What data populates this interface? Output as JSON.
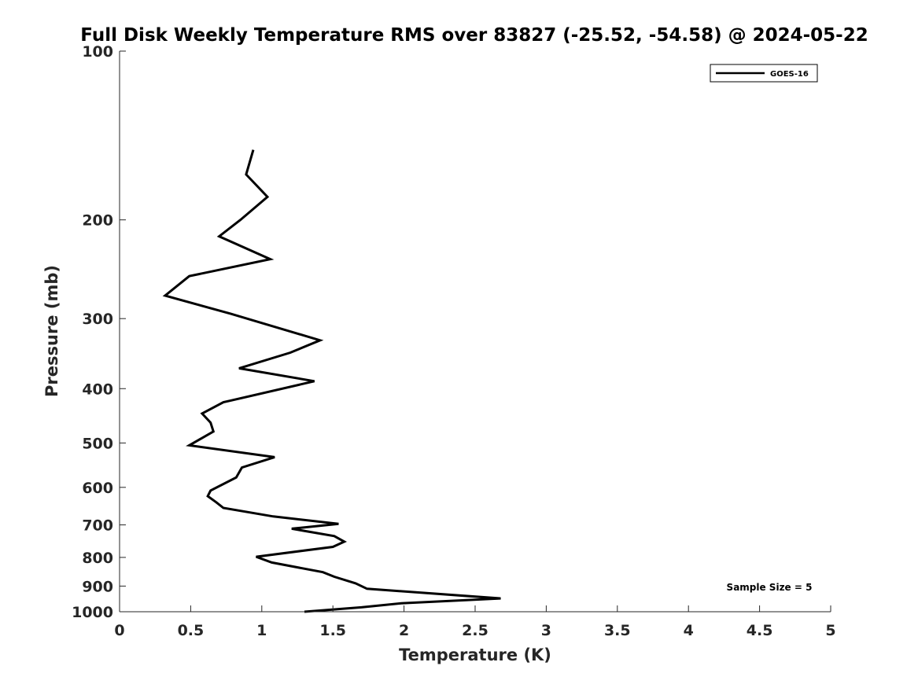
{
  "chart_data": {
    "type": "line",
    "title": "Full Disk Weekly Temperature RMS over 83827 (-25.52, -54.58) @ 2024-05-22",
    "xlabel": "Temperature (K)",
    "ylabel": "Pressure (mb)",
    "xlim": [
      0,
      5
    ],
    "ylim": [
      100,
      1000
    ],
    "y_scale": "log",
    "y_reversed": true,
    "x_ticks": [
      0,
      0.5,
      1,
      1.5,
      2,
      2.5,
      3,
      3.5,
      4,
      4.5,
      5
    ],
    "x_tick_labels": [
      "0",
      "0.5",
      "1",
      "1.5",
      "2",
      "2.5",
      "3",
      "3.5",
      "4",
      "4.5",
      "5"
    ],
    "y_ticks": [
      100,
      200,
      300,
      400,
      500,
      600,
      700,
      800,
      900,
      1000
    ],
    "y_tick_labels": [
      "100",
      "200",
      "300",
      "400",
      "500",
      "600",
      "700",
      "800",
      "900",
      "1000"
    ],
    "grid": false,
    "legend_position": "top-right",
    "series": [
      {
        "name": "GOES-16",
        "color": "#000000",
        "x": [
          0.94,
          0.89,
          1.04,
          0.85,
          0.7,
          1.06,
          0.49,
          0.32,
          0.78,
          1.41,
          1.2,
          0.84,
          1.37,
          0.73,
          0.58,
          0.64,
          0.66,
          0.49,
          1.09,
          0.86,
          0.82,
          0.64,
          0.62,
          0.68,
          0.73,
          1.08,
          1.54,
          1.21,
          1.51,
          1.58,
          1.5,
          0.96,
          1.07,
          1.43,
          1.51,
          1.66,
          1.74,
          2.68,
          1.98,
          1.7,
          1.3
        ],
        "y": [
          150,
          166,
          182,
          200,
          214,
          235,
          252,
          273,
          294,
          328,
          345,
          368,
          388,
          423,
          443,
          460,
          477,
          505,
          530,
          553,
          576,
          608,
          622,
          638,
          653,
          676,
          697,
          711,
          733,
          750,
          766,
          798,
          817,
          850,
          866,
          890,
          910,
          947,
          966,
          982,
          1000
        ]
      }
    ],
    "annotations": [
      "Sample Size = 5"
    ]
  }
}
